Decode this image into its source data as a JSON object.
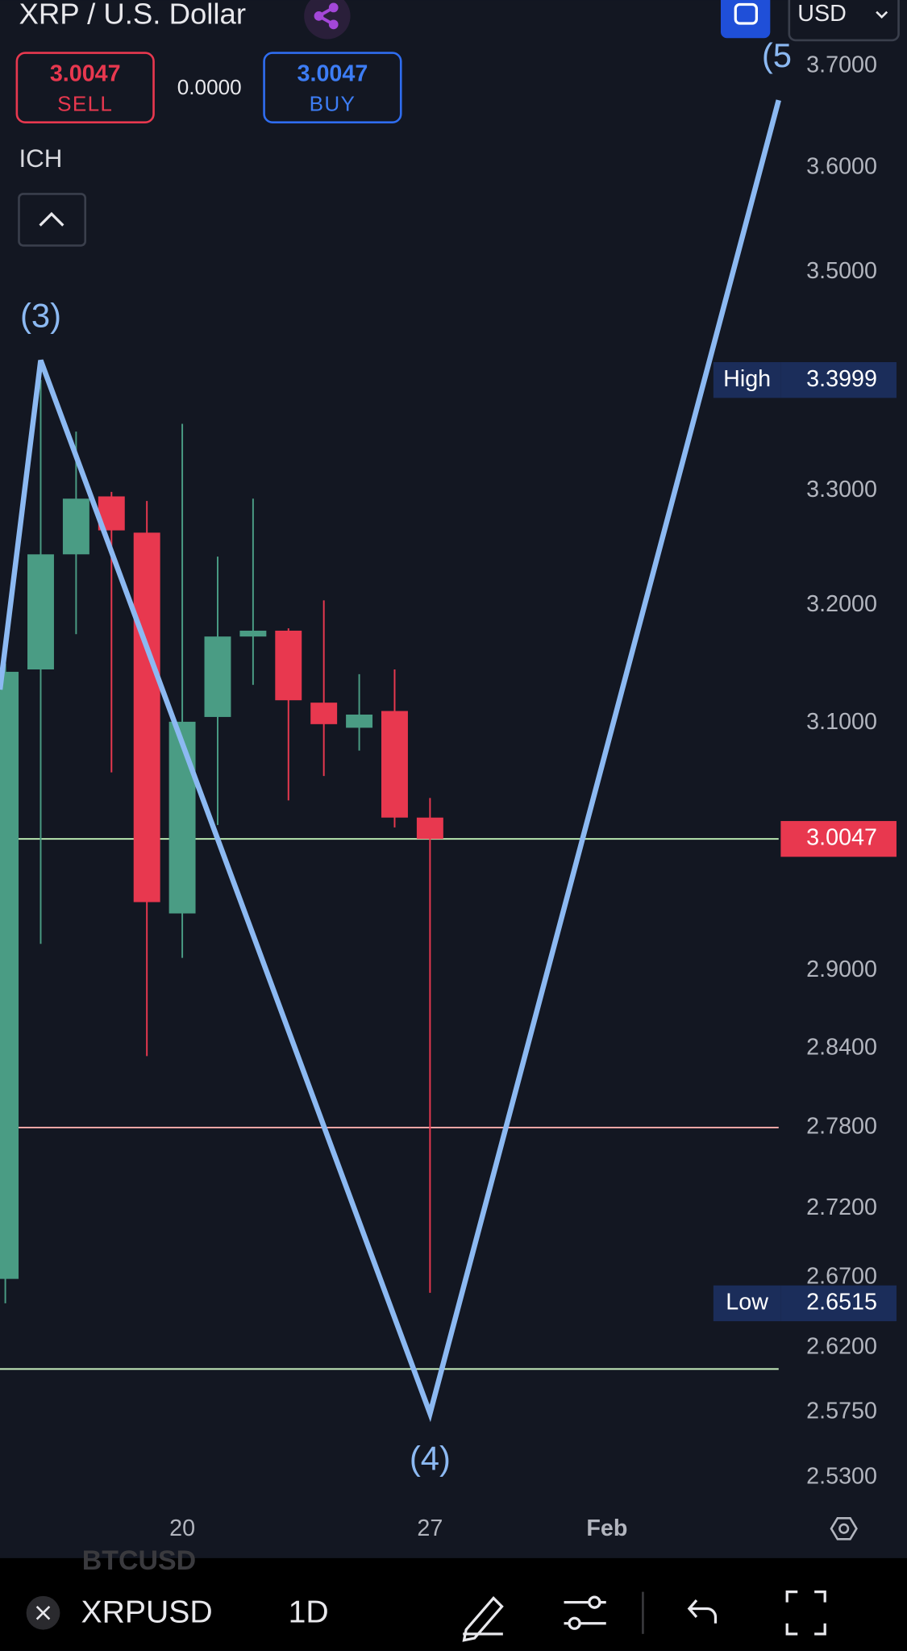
{
  "header": {
    "symbol_name": "XRP / U.S. Dollar",
    "currency": "USD"
  },
  "trade": {
    "sell_price": "3.0047",
    "sell_label": "SELL",
    "spread": "0.0000",
    "buy_price": "3.0047",
    "buy_label": "BUY"
  },
  "indicator": "ICH",
  "chart_data": {
    "type": "candlestick",
    "x": [
      15,
      16,
      17,
      18,
      19,
      20,
      21,
      22,
      23,
      24,
      25,
      26,
      27
    ],
    "open": [
      2.669,
      3.145,
      3.244,
      3.295,
      3.263,
      2.945,
      3.105,
      3.173,
      3.178,
      3.117,
      3.096,
      3.11,
      3.022
    ],
    "high": [
      3.15,
      3.3999,
      3.353,
      3.299,
      3.291,
      3.36,
      3.242,
      3.293,
      3.18,
      3.204,
      3.141,
      3.145,
      3.038
    ],
    "low": [
      2.6515,
      2.921,
      3.175,
      3.059,
      2.834,
      2.91,
      3.016,
      3.132,
      3.036,
      3.056,
      3.077,
      3.014,
      2.659
    ],
    "close": [
      3.143,
      3.244,
      3.293,
      3.265,
      2.954,
      3.101,
      3.173,
      3.178,
      3.119,
      3.099,
      3.107,
      3.022,
      3.0047
    ],
    "up_color": "#4a9c84",
    "down_color": "#e8384f",
    "log_scale": true,
    "xlim": [
      14.85,
      36.85
    ],
    "xticks": [
      {
        "value": 20,
        "label": "20"
      },
      {
        "value": 27,
        "label": "27"
      },
      {
        "value": 32,
        "label": "Feb"
      }
    ],
    "ylim": [
      2.511,
      3.766
    ],
    "yticks": [
      {
        "value": 3.7,
        "label": "3.7000"
      },
      {
        "value": 3.6,
        "label": "3.6000"
      },
      {
        "value": 3.5,
        "label": "3.5000"
      },
      {
        "value": 3.3,
        "label": "3.3000"
      },
      {
        "value": 3.2,
        "label": "3.2000"
      },
      {
        "value": 3.1,
        "label": "3.1000"
      },
      {
        "value": 2.9,
        "label": "2.9000"
      },
      {
        "value": 2.84,
        "label": "2.8400"
      },
      {
        "value": 2.78,
        "label": "2.7800"
      },
      {
        "value": 2.72,
        "label": "2.7200"
      },
      {
        "value": 2.67,
        "label": "2.6700"
      },
      {
        "value": 2.62,
        "label": "2.6200"
      },
      {
        "value": 2.575,
        "label": "2.5750"
      },
      {
        "value": 2.53,
        "label": "2.5300"
      }
    ],
    "wave": {
      "x": [
        14.85,
        16,
        27,
        36.85
      ],
      "values": [
        3.128,
        3.418,
        2.574,
        3.666
      ],
      "labels": [
        "(3)",
        "(4)",
        "(5"
      ],
      "color": "#8cb9f2"
    },
    "hlines": [
      {
        "value": 3.0047,
        "color": "#b8e6b0"
      },
      {
        "value": 2.78,
        "color": "#f3a5a5"
      },
      {
        "value": 2.605,
        "color": "#c9f0c0"
      }
    ],
    "last_price": 3.0047,
    "badges": [
      {
        "name": "High",
        "value": 3.3999
      },
      {
        "name": "Low",
        "value": 2.6515
      }
    ]
  },
  "toolbar": {
    "symbol": "XRPUSD",
    "interval": "1D",
    "ghost_symbol": "BTCUSD"
  }
}
